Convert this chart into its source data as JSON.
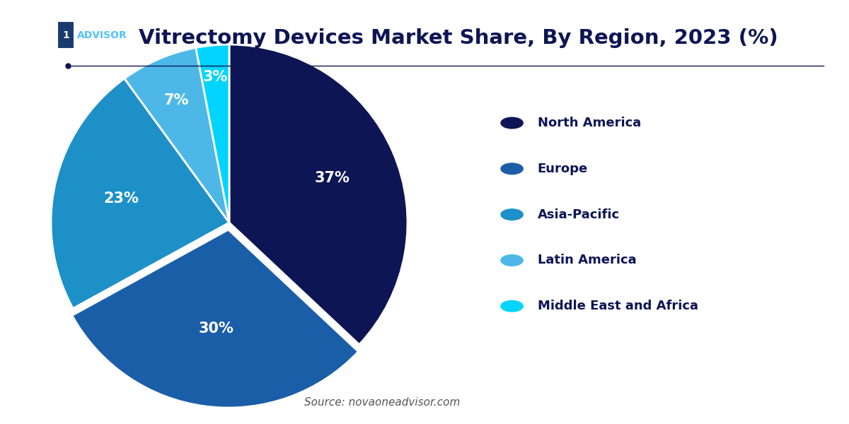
{
  "title": "Vitrectomy Devices Market Share, By Region, 2023 (%)",
  "labels": [
    "North America",
    "Europe",
    "Asia-Pacific",
    "Latin America",
    "Middle East and Africa"
  ],
  "values": [
    37,
    30,
    23,
    7,
    3
  ],
  "colors": [
    "#0d1554",
    "#1a5ea8",
    "#1e90c8",
    "#4db8e8",
    "#00d4ff"
  ],
  "explode": [
    0,
    0.04,
    0,
    0,
    0
  ],
  "pct_labels": [
    "37%",
    "30%",
    "23%",
    "7%",
    "3%"
  ],
  "source_text": "Source: novaoneadvisor.com",
  "bg_color": "#ffffff",
  "text_color": "#0d1554",
  "legend_fontsize": 13,
  "title_fontsize": 21
}
